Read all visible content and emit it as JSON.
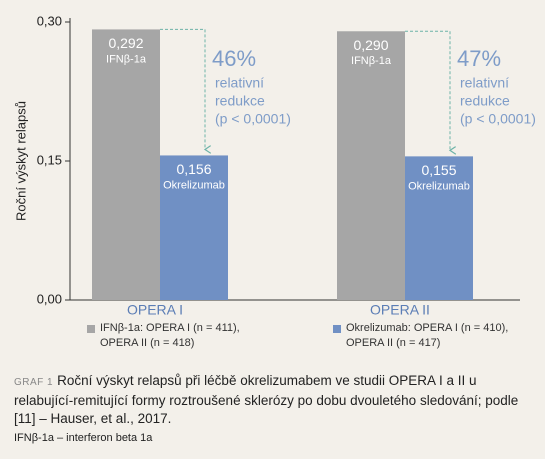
{
  "chart_data": {
    "type": "bar",
    "ylabel": "Roční výskyt relapsů",
    "categories": [
      "OPERA I",
      "OPERA II"
    ],
    "series": [
      {
        "name": "IFNβ-1a: OPERA I (n = 411), OPERA II (n = 418)",
        "short_name": "IFNβ-1a",
        "color": "#a6a6a6",
        "values": [
          0.292,
          0.29
        ],
        "value_labels": [
          "0,292",
          "0,290"
        ]
      },
      {
        "name": "Okrelizumab: OPERA I (n = 410), OPERA II (n = 417)",
        "short_name": "Okrelizumab",
        "color": "#7090c4",
        "values": [
          0.156,
          0.155
        ],
        "value_labels": [
          "0,156",
          "0,155"
        ]
      }
    ],
    "annotations": [
      {
        "percent": "46%",
        "lines": [
          "relativní",
          "redukce",
          "(p < 0,0001)"
        ]
      },
      {
        "percent": "47%",
        "lines": [
          "relativní",
          "redukce",
          "(p < 0,0001)"
        ]
      }
    ],
    "ylim": [
      0,
      0.3
    ],
    "yticks": [
      {
        "value": 0,
        "label": "0,00"
      },
      {
        "value": 0.15,
        "label": "0,15"
      },
      {
        "value": 0.3,
        "label": "0,30"
      }
    ],
    "grid": false
  },
  "caption": {
    "label": "GRAF 1",
    "text": "Roční výskyt relapsů při léčbě okrelizumabem ve studii OPERA I a II u relabující-remitující formy roztroušené sklerózy po dobu dvouletého sledování; podle [11] – Hauser, et al., 2017.",
    "footnote": "IFNβ-1a – interferon beta 1a"
  }
}
